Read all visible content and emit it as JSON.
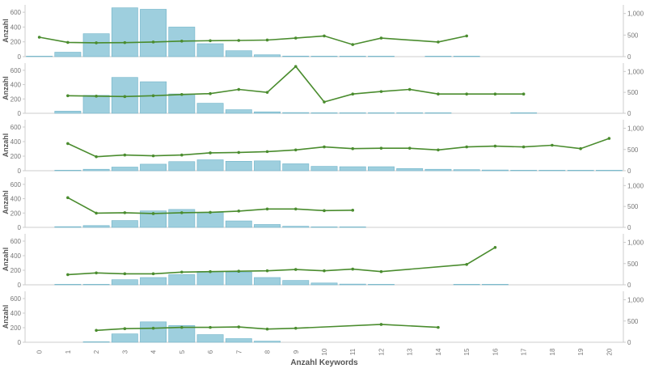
{
  "colors": {
    "bar_fill": "#9ecfde",
    "bar_stroke": "#6fb3c8",
    "line": "#4a8c2e",
    "axis": "#cccccc",
    "grid": "#e6e6e6"
  },
  "left_axis_label": "Anzahl",
  "x_axis_label": "Anzahl Keywords",
  "x_ticks": [
    "0",
    "1",
    "2",
    "3",
    "4",
    "5",
    "6",
    "7",
    "8",
    "9",
    "10",
    "11",
    "12",
    "13",
    "14",
    "15",
    "16",
    "17",
    "18",
    "19",
    "20"
  ],
  "chart_data": [
    {
      "type": "bar",
      "categories": [
        "0",
        "1",
        "2",
        "3",
        "4",
        "5",
        "6",
        "7",
        "8",
        "9",
        "10",
        "11",
        "12",
        "13",
        "14",
        "15",
        "16",
        "17",
        "18",
        "19",
        "20"
      ],
      "series": [
        {
          "type": "bar",
          "axis": "left",
          "values": [
            3,
            60,
            310,
            660,
            640,
            400,
            175,
            80,
            25,
            8,
            5,
            2,
            2,
            null,
            3,
            3,
            null,
            null,
            null,
            null,
            null
          ]
        },
        {
          "type": "line",
          "axis": "right",
          "values": [
            450,
            330,
            320,
            325,
            340,
            360,
            370,
            375,
            385,
            430,
            480,
            280,
            430,
            null,
            340,
            480,
            null,
            null,
            null,
            null,
            null
          ]
        }
      ],
      "yleft_ticks": [
        "0",
        "200",
        "400",
        "600"
      ],
      "yleft_lim": [
        0,
        700
      ],
      "yright_ticks": [
        "0",
        "500",
        "1,000"
      ],
      "yright_lim": [
        0,
        1200
      ]
    },
    {
      "type": "bar",
      "categories": [
        "0",
        "1",
        "2",
        "3",
        "4",
        "5",
        "6",
        "7",
        "8",
        "9",
        "10",
        "11",
        "12",
        "13",
        "14",
        "15",
        "16",
        "17",
        "18",
        "19",
        "20"
      ],
      "series": [
        {
          "type": "bar",
          "axis": "left",
          "values": [
            null,
            30,
            250,
            500,
            440,
            270,
            140,
            50,
            20,
            10,
            5,
            3,
            2,
            2,
            2,
            null,
            null,
            2,
            null,
            null,
            null
          ]
        },
        {
          "type": "line",
          "axis": "right",
          "values": [
            null,
            420,
            410,
            400,
            420,
            450,
            470,
            570,
            500,
            1120,
            270,
            460,
            520,
            570,
            460,
            460,
            460,
            460,
            null,
            null,
            null
          ]
        }
      ],
      "yleft_ticks": [
        "0",
        "200",
        "400",
        "600"
      ],
      "yleft_lim": [
        0,
        700
      ],
      "yright_ticks": [
        "0",
        "500",
        "1,000"
      ],
      "yright_lim": [
        0,
        1200
      ]
    },
    {
      "type": "bar",
      "categories": [
        "0",
        "1",
        "2",
        "3",
        "4",
        "5",
        "6",
        "7",
        "8",
        "9",
        "10",
        "11",
        "12",
        "13",
        "14",
        "15",
        "16",
        "17",
        "18",
        "19",
        "20"
      ],
      "series": [
        {
          "type": "bar",
          "axis": "left",
          "values": [
            null,
            5,
            20,
            50,
            90,
            125,
            150,
            130,
            135,
            95,
            60,
            55,
            55,
            30,
            20,
            15,
            10,
            5,
            5,
            5,
            5
          ]
        },
        {
          "type": "line",
          "axis": "right",
          "values": [
            null,
            640,
            330,
            370,
            350,
            370,
            420,
            430,
            450,
            490,
            560,
            520,
            530,
            530,
            490,
            560,
            580,
            560,
            600,
            520,
            760
          ]
        }
      ],
      "yleft_ticks": [
        "0",
        "200",
        "400",
        "600"
      ],
      "yleft_lim": [
        0,
        700
      ],
      "yright_ticks": [
        "0",
        "500",
        "1,000"
      ],
      "yright_lim": [
        0,
        1200
      ]
    },
    {
      "type": "bar",
      "categories": [
        "0",
        "1",
        "2",
        "3",
        "4",
        "5",
        "6",
        "7",
        "8",
        "9",
        "10",
        "11",
        "12",
        "13",
        "14",
        "15",
        "16",
        "17",
        "18",
        "19",
        "20"
      ],
      "series": [
        {
          "type": "bar",
          "axis": "left",
          "values": [
            null,
            10,
            25,
            95,
            230,
            250,
            210,
            90,
            40,
            15,
            5,
            3,
            null,
            null,
            null,
            null,
            null,
            null,
            null,
            null,
            null
          ]
        },
        {
          "type": "line",
          "axis": "right",
          "values": [
            null,
            710,
            340,
            350,
            330,
            350,
            360,
            390,
            440,
            440,
            400,
            410,
            null,
            null,
            null,
            null,
            null,
            null,
            null,
            null,
            null
          ]
        }
      ],
      "yleft_ticks": [
        "0",
        "200",
        "400",
        "600"
      ],
      "yleft_lim": [
        0,
        700
      ],
      "yright_ticks": [
        "0",
        "500",
        "1,000"
      ],
      "yright_lim": [
        0,
        1200
      ]
    },
    {
      "type": "bar",
      "categories": [
        "0",
        "1",
        "2",
        "3",
        "4",
        "5",
        "6",
        "7",
        "8",
        "9",
        "10",
        "11",
        "12",
        "13",
        "14",
        "15",
        "16",
        "17",
        "18",
        "19",
        "20"
      ],
      "series": [
        {
          "type": "bar",
          "axis": "left",
          "values": [
            null,
            3,
            5,
            70,
            100,
            140,
            185,
            175,
            100,
            60,
            25,
            10,
            5,
            null,
            null,
            3,
            3,
            null,
            null,
            null,
            null
          ]
        },
        {
          "type": "line",
          "axis": "right",
          "values": [
            null,
            240,
            280,
            260,
            260,
            300,
            310,
            320,
            330,
            360,
            330,
            370,
            310,
            null,
            null,
            480,
            880,
            null,
            null,
            null,
            null
          ]
        }
      ],
      "yleft_ticks": [
        "0",
        "200",
        "400",
        "600"
      ],
      "yleft_lim": [
        0,
        700
      ],
      "yright_ticks": [
        "0",
        "500",
        "1,000"
      ],
      "yright_lim": [
        0,
        1200
      ]
    },
    {
      "type": "bar",
      "categories": [
        "0",
        "1",
        "2",
        "3",
        "4",
        "5",
        "6",
        "7",
        "8",
        "9",
        "10",
        "11",
        "12",
        "13",
        "14",
        "15",
        "16",
        "17",
        "18",
        "19",
        "20"
      ],
      "series": [
        {
          "type": "bar",
          "axis": "left",
          "values": [
            null,
            null,
            5,
            115,
            280,
            230,
            105,
            50,
            15,
            null,
            null,
            null,
            null,
            null,
            null,
            null,
            null,
            null,
            null,
            null,
            null
          ]
        },
        {
          "type": "line",
          "axis": "right",
          "values": [
            null,
            null,
            280,
            320,
            330,
            350,
            350,
            360,
            310,
            330,
            null,
            null,
            420,
            null,
            350,
            null,
            null,
            null,
            null,
            null,
            null
          ]
        }
      ],
      "yleft_ticks": [
        "0",
        "200",
        "400",
        "600"
      ],
      "yleft_lim": [
        0,
        700
      ],
      "yright_ticks": [
        "0",
        "500",
        "1,000"
      ],
      "yright_lim": [
        0,
        1200
      ]
    }
  ]
}
